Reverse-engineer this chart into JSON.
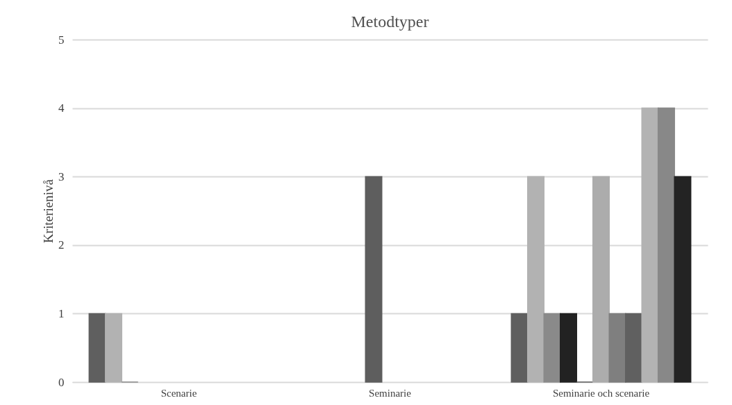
{
  "chart_data": {
    "type": "bar",
    "title": "Metodtyper",
    "ylabel": "Kriterienivå",
    "categories": [
      "Scenarie",
      "Seminarie",
      "Seminarie och scenarie"
    ],
    "series": [
      {
        "color": "#5f5f5f",
        "values": [
          1,
          null,
          1
        ]
      },
      {
        "color": "#b2b2b2",
        "values": [
          1,
          null,
          3
        ]
      },
      {
        "color": "#8a8a8a",
        "values": [
          0,
          null,
          1
        ]
      },
      {
        "color": "#222222",
        "values": [
          null,
          null,
          1
        ]
      },
      {
        "color": "#5e5e5e",
        "values": [
          null,
          3,
          0
        ]
      },
      {
        "color": "#acacac",
        "values": [
          null,
          null,
          3
        ]
      },
      {
        "color": "#7f7f7f",
        "values": [
          null,
          null,
          1
        ]
      },
      {
        "color": "#606060",
        "values": [
          null,
          null,
          1
        ]
      },
      {
        "color": "#b3b3b3",
        "values": [
          null,
          null,
          4
        ]
      },
      {
        "color": "#888888",
        "values": [
          null,
          null,
          4
        ]
      },
      {
        "color": "#232323",
        "values": [
          null,
          null,
          3
        ]
      }
    ],
    "ylim": [
      0,
      5
    ],
    "yticks": [
      0,
      1,
      2,
      3,
      4,
      5
    ],
    "grid": "y",
    "legend": false
  }
}
